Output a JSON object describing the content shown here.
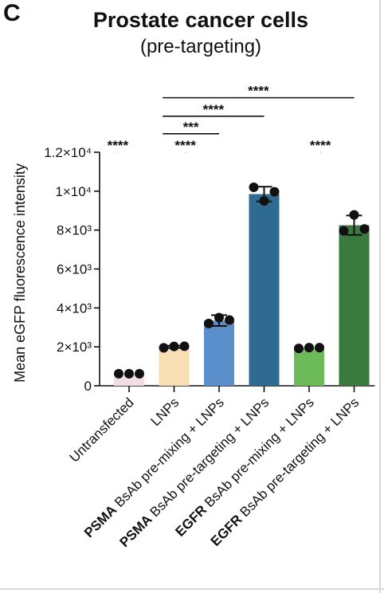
{
  "panel_label": "C",
  "chart_data": {
    "type": "bar",
    "title": "Prostate cancer cells",
    "subtitle": "(pre-targeting)",
    "ylabel": "Mean eGFP fluorescence intensity",
    "xlabel": "",
    "ylim": [
      0,
      12000
    ],
    "yticks": [
      {
        "value": 0,
        "label": "0"
      },
      {
        "value": 2000,
        "label": "2×10³"
      },
      {
        "value": 4000,
        "label": "4×10³"
      },
      {
        "value": 6000,
        "label": "6×10³"
      },
      {
        "value": 8000,
        "label": "8×10³"
      },
      {
        "value": 10000,
        "label": "1×10⁴"
      },
      {
        "value": 12000,
        "label": "1.2×10⁴"
      }
    ],
    "categories": [
      {
        "bold": "",
        "text": "Untransfected"
      },
      {
        "bold": "",
        "text": "LNPs"
      },
      {
        "bold": "PSMA",
        "text": " BsAb pre-mixing + LNPs"
      },
      {
        "bold": "PSMA",
        "text": " BsAb pre-targeting + LNPs"
      },
      {
        "bold": "EGFR",
        "text": " BsAb pre-mixing + LNPs"
      },
      {
        "bold": "EGFR",
        "text": " BsAb pre-targeting + LNPs"
      }
    ],
    "values": [
      620,
      2000,
      3350,
      9850,
      1950,
      8250
    ],
    "errors": [
      0,
      60,
      280,
      380,
      0,
      500
    ],
    "points": [
      [
        620,
        620,
        620
      ],
      [
        1950,
        2020,
        2030
      ],
      [
        3200,
        3500,
        3380
      ],
      [
        10200,
        9500,
        9970
      ],
      [
        1920,
        1960,
        1960
      ],
      [
        7960,
        8780,
        8060
      ]
    ],
    "colors": [
      "#f2dde3",
      "#f8ddb5",
      "#5b8fcc",
      "#2f6a92",
      "#6cbb58",
      "#3b7a3f"
    ],
    "significance": [
      {
        "from": 0,
        "to": 1,
        "label": "****",
        "level": 12000
      },
      {
        "from": 3,
        "to": 4,
        "label": "****",
        "level": 12000
      },
      {
        "from": 9,
        "to": 10,
        "label": "****",
        "level": 12000
      },
      {
        "from": 2,
        "to": 5,
        "label": "***",
        "level": 12950
      },
      {
        "from": 2,
        "to": 7,
        "label": "****",
        "level": 13850
      },
      {
        "from": 2,
        "to": 11,
        "label": "****",
        "level": 14800
      }
    ]
  }
}
